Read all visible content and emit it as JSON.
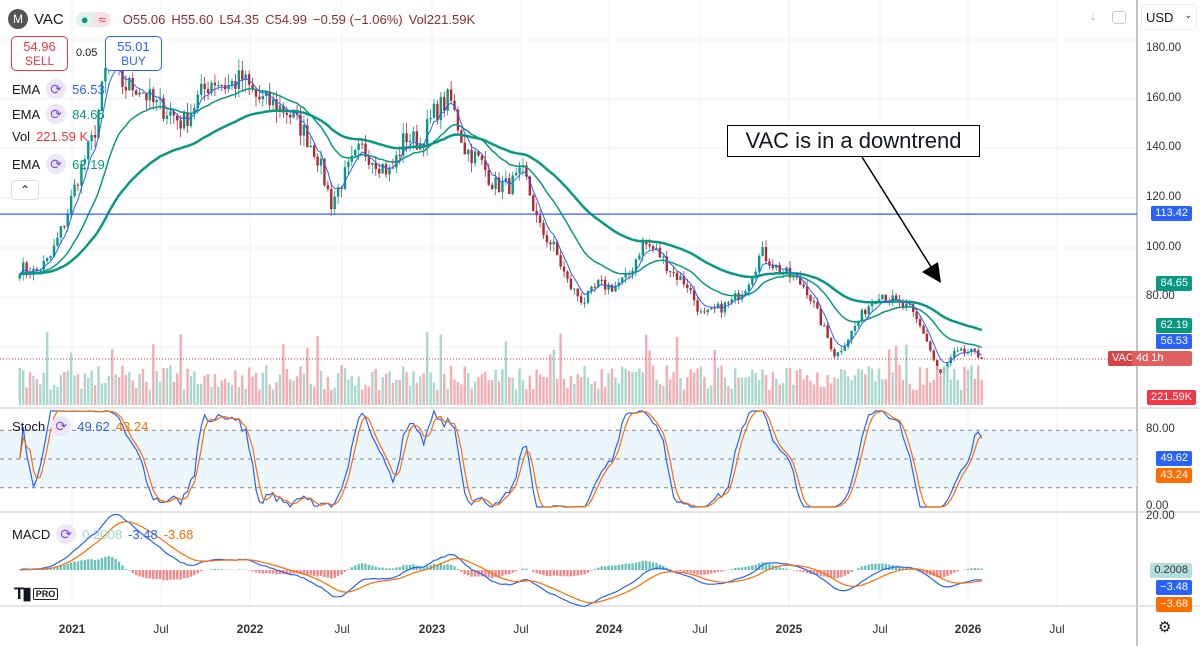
{
  "header": {
    "symbol": "VAC",
    "open": "O55.06",
    "high": "H55.60",
    "low": "L54.35",
    "close": "C54.99",
    "change": "−0.59 (−1.06%)",
    "volume": "Vol221.59K"
  },
  "trade": {
    "sell_price": "54.96",
    "sell_label": "SELL",
    "spread": "0.05",
    "buy_price": "55.01",
    "buy_label": "BUY"
  },
  "legend": [
    {
      "name": "EMA",
      "value": "56.53",
      "color": "#2962ff"
    },
    {
      "name": "EMA",
      "value": "84.65",
      "color": "#089981"
    },
    {
      "name": "Vol",
      "value": "221.59 K",
      "color": "#f23645"
    },
    {
      "name": "EMA",
      "value": "62.19",
      "color": "#089981"
    }
  ],
  "currency": "USD",
  "annotation": "VAC is in a downtrend",
  "price_axis": [
    "180.00",
    "160.00",
    "140.00",
    "120.00",
    "100.00",
    "80.00"
  ],
  "price_tags": {
    "hline": "113.42",
    "ema_long": "84.65",
    "ema_mid": "62.19",
    "ema_short": "56.53",
    "symbol": "VAC",
    "countdown": "4d 1h",
    "volume": "221.59K"
  },
  "stoch": {
    "label": "Stoch",
    "k": "49.62",
    "d": "43.24",
    "axis": [
      "80.00",
      "0.00"
    ]
  },
  "macd": {
    "label": "MACD",
    "hist": "0.2008",
    "macd": "-3.48",
    "signal": "-3.68",
    "axis": "20.00",
    "tag_hist": "0.2008",
    "tag_macd": "−3.48",
    "tag_signal": "−3.68"
  },
  "time_axis": [
    "2021",
    "Jul",
    "2022",
    "Jul",
    "2023",
    "Jul",
    "2024",
    "Jul",
    "2025",
    "Jul",
    "2026",
    "Jul"
  ],
  "colors": {
    "up": "#089981",
    "down": "#b22833",
    "ema_short": "#2962ff",
    "ema": "#089981",
    "hline": "#2962ff",
    "stoch_k": "#2962ff",
    "stoch_d": "#ff6d00"
  },
  "chart_data": {
    "type": "candlestick",
    "interval": "weekly",
    "ylim": [
      40,
      190
    ],
    "horizontal_line": 113.42,
    "last_close": 54.99,
    "monthly_close": [
      [
        "2020-09",
        92
      ],
      [
        "2020-10",
        90
      ],
      [
        "2020-11",
        95
      ],
      [
        "2020-12",
        110
      ],
      [
        "2021-01",
        130
      ],
      [
        "2021-02",
        145
      ],
      [
        "2021-03",
        178
      ],
      [
        "2021-04",
        165
      ],
      [
        "2021-05",
        165
      ],
      [
        "2021-06",
        158
      ],
      [
        "2021-07",
        155
      ],
      [
        "2021-08",
        150
      ],
      [
        "2021-09",
        160
      ],
      [
        "2021-10",
        168
      ],
      [
        "2021-11",
        165
      ],
      [
        "2021-12",
        168
      ],
      [
        "2022-01",
        160
      ],
      [
        "2022-02",
        158
      ],
      [
        "2022-03",
        155
      ],
      [
        "2022-04",
        148
      ],
      [
        "2022-05",
        138
      ],
      [
        "2022-06",
        118
      ],
      [
        "2022-07",
        130
      ],
      [
        "2022-08",
        140
      ],
      [
        "2022-09",
        135
      ],
      [
        "2022-10",
        130
      ],
      [
        "2022-11",
        145
      ],
      [
        "2022-12",
        142
      ],
      [
        "2023-01",
        155
      ],
      [
        "2023-02",
        160
      ],
      [
        "2023-03",
        140
      ],
      [
        "2023-04",
        135
      ],
      [
        "2023-05",
        125
      ],
      [
        "2023-06",
        125
      ],
      [
        "2023-07",
        130
      ],
      [
        "2023-08",
        108
      ],
      [
        "2023-09",
        100
      ],
      [
        "2023-10",
        85
      ],
      [
        "2023-11",
        78
      ],
      [
        "2023-12",
        85
      ],
      [
        "2024-01",
        84
      ],
      [
        "2024-02",
        88
      ],
      [
        "2024-03",
        102
      ],
      [
        "2024-04",
        98
      ],
      [
        "2024-05",
        90
      ],
      [
        "2024-06",
        85
      ],
      [
        "2024-07",
        72
      ],
      [
        "2024-08",
        75
      ],
      [
        "2024-09",
        78
      ],
      [
        "2024-10",
        85
      ],
      [
        "2024-11",
        98
      ],
      [
        "2024-12",
        92
      ],
      [
        "2025-01",
        88
      ],
      [
        "2025-02",
        84
      ],
      [
        "2025-03",
        70
      ],
      [
        "2025-04",
        56
      ],
      [
        "2025-05",
        65
      ],
      [
        "2025-06",
        75
      ],
      [
        "2025-07",
        82
      ],
      [
        "2025-08",
        78
      ],
      [
        "2025-09",
        75
      ],
      [
        "2025-10",
        65
      ],
      [
        "2025-11",
        48
      ],
      [
        "2025-12",
        57
      ],
      [
        "2026-01",
        58
      ],
      [
        "2026-02",
        55
      ]
    ]
  }
}
